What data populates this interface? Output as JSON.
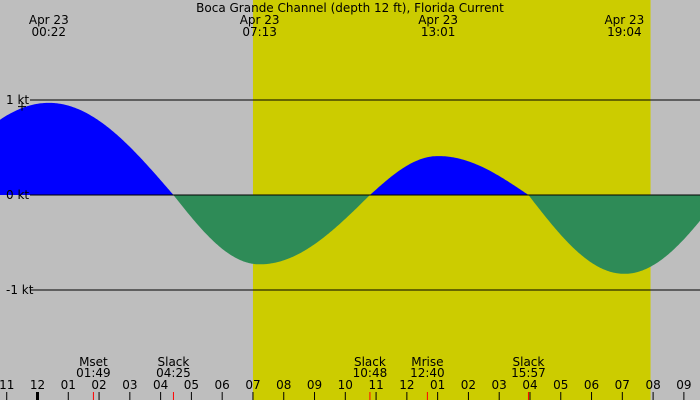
{
  "chart_data": {
    "type": "area",
    "title": "Boca Grande Channel (depth 12 ft), Florida Current",
    "colors": {
      "night": "#bebebe",
      "day": "#cccc00",
      "flood": "#0000ff",
      "ebb": "#2e8b57",
      "event_tick": "#ff0000"
    },
    "daylight": {
      "start": "07:00",
      "end": "19:55"
    },
    "y_ticks": [
      {
        "value": 1,
        "label": "1 kt"
      },
      {
        "value": 0,
        "label": "0 kt"
      },
      {
        "value": -1,
        "label": "-1 kt"
      }
    ],
    "x_ticks": [
      "11",
      "12",
      "01",
      "02",
      "03",
      "04",
      "05",
      "06",
      "07",
      "08",
      "09",
      "10",
      "11",
      "12",
      "01",
      "02",
      "03",
      "04",
      "05",
      "06",
      "07",
      "08",
      "09"
    ],
    "extrema": [
      {
        "date": "Apr 23",
        "time": "00:22",
        "value": 0.97
      },
      {
        "date": "Apr 23",
        "time": "07:13",
        "value": -0.73
      },
      {
        "date": "Apr 23",
        "time": "13:01",
        "value": 0.41
      },
      {
        "date": "Apr 23",
        "time": "19:04",
        "value": -0.83
      }
    ],
    "events": [
      {
        "label": "Mset",
        "time": "01:49"
      },
      {
        "label": "Slack",
        "time": "04:25"
      },
      {
        "label": "Slack",
        "time": "10:48"
      },
      {
        "label": "Mrise",
        "time": "12:40"
      },
      {
        "label": "Slack",
        "time": "15:57"
      }
    ]
  }
}
